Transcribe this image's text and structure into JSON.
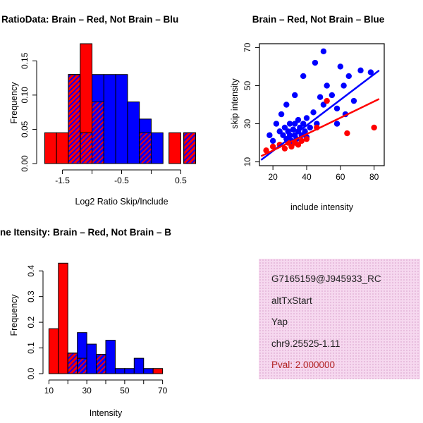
{
  "colors": {
    "red": "#ff0000",
    "blue": "#0000ff",
    "axis": "#000000",
    "background": "#ffffff"
  },
  "chart_data": [
    {
      "id": "hist-ratio",
      "type": "bar",
      "title": "RatioData: Brain – Red, Not Brain – Blu",
      "xlabel": "Log2 Ratio Skip/Include",
      "ylabel": "Frequency",
      "xlim": [
        -1.9,
        0.9
      ],
      "ylim": [
        0,
        0.175
      ],
      "plot": {
        "l": 55,
        "t": 62,
        "r": 290,
        "b": 232
      },
      "xticks": [
        {
          "v": -1.5,
          "label": "-1.5"
        },
        {
          "v": -1.0
        },
        {
          "v": -0.5,
          "label": "-0.5"
        },
        {
          "v": 0.0
        },
        {
          "v": 0.5,
          "label": "0.5"
        }
      ],
      "yticks": [
        {
          "v": 0,
          "label": "0.00"
        },
        {
          "v": 0.05,
          "label": "0.05"
        },
        {
          "v": 0.1,
          "label": "0.10"
        },
        {
          "v": 0.15,
          "label": "0.15"
        }
      ],
      "bars": [
        {
          "x0": -1.8,
          "x1": -1.6,
          "h": 0.045,
          "c": "red"
        },
        {
          "x0": -1.6,
          "x1": -1.4,
          "h": 0.045,
          "c": "red"
        },
        {
          "x0": -1.4,
          "x1": -1.2,
          "h": 0.13,
          "c": "red",
          "hh": 0.13
        },
        {
          "x0": -1.2,
          "x1": -1.0,
          "h": 0.175,
          "c": "red",
          "hh": 0.045
        },
        {
          "x0": -1.0,
          "x1": -0.8,
          "h": 0.13,
          "c": "blue",
          "hh": 0.09
        },
        {
          "x0": -0.8,
          "x1": -0.6,
          "h": 0.13,
          "c": "blue"
        },
        {
          "x0": -0.6,
          "x1": -0.4,
          "h": 0.13,
          "c": "blue"
        },
        {
          "x0": -0.4,
          "x1": -0.2,
          "h": 0.09,
          "c": "blue"
        },
        {
          "x0": -0.2,
          "x1": 0.0,
          "h": 0.065,
          "c": "blue",
          "hh": 0.045
        },
        {
          "x0": 0.0,
          "x1": 0.2,
          "h": 0.045,
          "c": "blue"
        },
        {
          "x0": 0.3,
          "x1": 0.5,
          "h": 0.045,
          "c": "red"
        },
        {
          "x0": 0.55,
          "x1": 0.75,
          "h": 0.045,
          "c": "red",
          "hh": 0.045
        }
      ]
    },
    {
      "id": "scatter-intensity",
      "type": "scatter",
      "title": "Brain – Red, Not Brain – Blue",
      "xlabel": "include intensity",
      "ylabel": "skip intensity",
      "xlim": [
        12,
        86
      ],
      "ylim": [
        8,
        72
      ],
      "plot": {
        "l": 68,
        "t": 62,
        "r": 245,
        "b": 235
      },
      "xticks": [
        {
          "v": 20,
          "label": "20"
        },
        {
          "v": 40,
          "label": "40"
        },
        {
          "v": 60,
          "label": "60"
        },
        {
          "v": 80,
          "label": "80"
        }
      ],
      "yticks": [
        {
          "v": 10,
          "label": "10"
        },
        {
          "v": 30,
          "label": "30"
        },
        {
          "v": 50,
          "label": "50"
        },
        {
          "v": 70,
          "label": "70"
        }
      ],
      "series": [
        {
          "name": "Not Brain",
          "color": "blue",
          "points": [
            [
              18,
              24
            ],
            [
              20,
              21
            ],
            [
              22,
              30
            ],
            [
              24,
              26
            ],
            [
              25,
              35
            ],
            [
              26,
              24
            ],
            [
              27,
              28
            ],
            [
              28,
              22
            ],
            [
              28,
              40
            ],
            [
              29,
              26
            ],
            [
              30,
              24
            ],
            [
              30,
              30
            ],
            [
              31,
              21
            ],
            [
              32,
              27
            ],
            [
              33,
              24
            ],
            [
              33,
              30
            ],
            [
              33,
              45
            ],
            [
              34,
              22
            ],
            [
              35,
              26
            ],
            [
              35,
              32
            ],
            [
              36,
              28
            ],
            [
              37,
              24
            ],
            [
              38,
              30
            ],
            [
              38,
              55
            ],
            [
              39,
              26
            ],
            [
              40,
              23
            ],
            [
              40,
              33
            ],
            [
              42,
              28
            ],
            [
              44,
              36
            ],
            [
              45,
              62
            ],
            [
              46,
              30
            ],
            [
              48,
              44
            ],
            [
              50,
              40
            ],
            [
              50,
              68
            ],
            [
              52,
              50
            ],
            [
              55,
              45
            ],
            [
              58,
              30
            ],
            [
              58,
              38
            ],
            [
              60,
              60
            ],
            [
              62,
              50
            ],
            [
              63,
              35
            ],
            [
              65,
              55
            ],
            [
              68,
              42
            ],
            [
              72,
              58
            ],
            [
              78,
              57
            ]
          ]
        },
        {
          "name": "Brain",
          "color": "red",
          "points": [
            [
              16,
              16
            ],
            [
              20,
              18
            ],
            [
              24,
              19
            ],
            [
              27,
              17
            ],
            [
              29,
              20
            ],
            [
              31,
              18
            ],
            [
              33,
              20
            ],
            [
              35,
              19
            ],
            [
              37,
              21
            ],
            [
              40,
              22
            ],
            [
              46,
              28
            ],
            [
              52,
              42
            ],
            [
              64,
              25
            ],
            [
              80,
              28
            ]
          ]
        }
      ],
      "fit_lines": [
        {
          "color": "blue",
          "from": [
            13,
            11
          ],
          "to": [
            83,
            58
          ]
        },
        {
          "color": "red",
          "from": [
            13,
            13
          ],
          "to": [
            83,
            43
          ]
        }
      ]
    },
    {
      "id": "hist-intensity",
      "type": "bar",
      "title": "ne Itensity: Brain – Red, Not Brain – B",
      "xlabel": "Intensity",
      "ylabel": "Frequency",
      "xlim": [
        8,
        72
      ],
      "ylim": [
        0,
        0.45
      ],
      "plot": {
        "l": 64,
        "t": 66,
        "r": 236,
        "b": 230
      },
      "xticks": [
        {
          "v": 10,
          "label": "10"
        },
        {
          "v": 20
        },
        {
          "v": 30,
          "label": "30"
        },
        {
          "v": 40
        },
        {
          "v": 50,
          "label": "50"
        },
        {
          "v": 60
        },
        {
          "v": 70,
          "label": "70"
        }
      ],
      "yticks": [
        {
          "v": 0,
          "label": "0.0"
        },
        {
          "v": 0.1,
          "label": "0.1"
        },
        {
          "v": 0.2,
          "label": "0.2"
        },
        {
          "v": 0.3,
          "label": "0.3"
        },
        {
          "v": 0.4,
          "label": "0.4"
        }
      ],
      "bars": [
        {
          "x0": 10,
          "x1": 15,
          "h": 0.175,
          "c": "red"
        },
        {
          "x0": 15,
          "x1": 20,
          "h": 0.43,
          "c": "red"
        },
        {
          "x0": 20,
          "x1": 25,
          "h": 0.08,
          "c": "red",
          "hh": 0.08
        },
        {
          "x0": 25,
          "x1": 30,
          "h": 0.16,
          "c": "blue",
          "hh": 0.06
        },
        {
          "x0": 30,
          "x1": 35,
          "h": 0.115,
          "c": "blue"
        },
        {
          "x0": 35,
          "x1": 40,
          "h": 0.075,
          "c": "blue",
          "hh": 0.075
        },
        {
          "x0": 40,
          "x1": 45,
          "h": 0.13,
          "c": "blue"
        },
        {
          "x0": 45,
          "x1": 50,
          "h": 0.02,
          "c": "blue"
        },
        {
          "x0": 50,
          "x1": 55,
          "h": 0.02,
          "c": "blue"
        },
        {
          "x0": 55,
          "x1": 60,
          "h": 0.06,
          "c": "blue"
        },
        {
          "x0": 60,
          "x1": 65,
          "h": 0.02,
          "c": "blue"
        },
        {
          "x0": 65,
          "x1": 70,
          "h": 0.02,
          "c": "red"
        }
      ]
    }
  ],
  "info_panel": {
    "lines": [
      "G7165159@J945933_RC",
      "altTxStart",
      "Yap",
      "chr9.25525-1.11"
    ],
    "pval": "Pval: 2.000000",
    "bg_color": "#f6d8ef",
    "dot_color": "#e3b6d8",
    "text_color": "#222222",
    "pval_color": "#b22222"
  }
}
